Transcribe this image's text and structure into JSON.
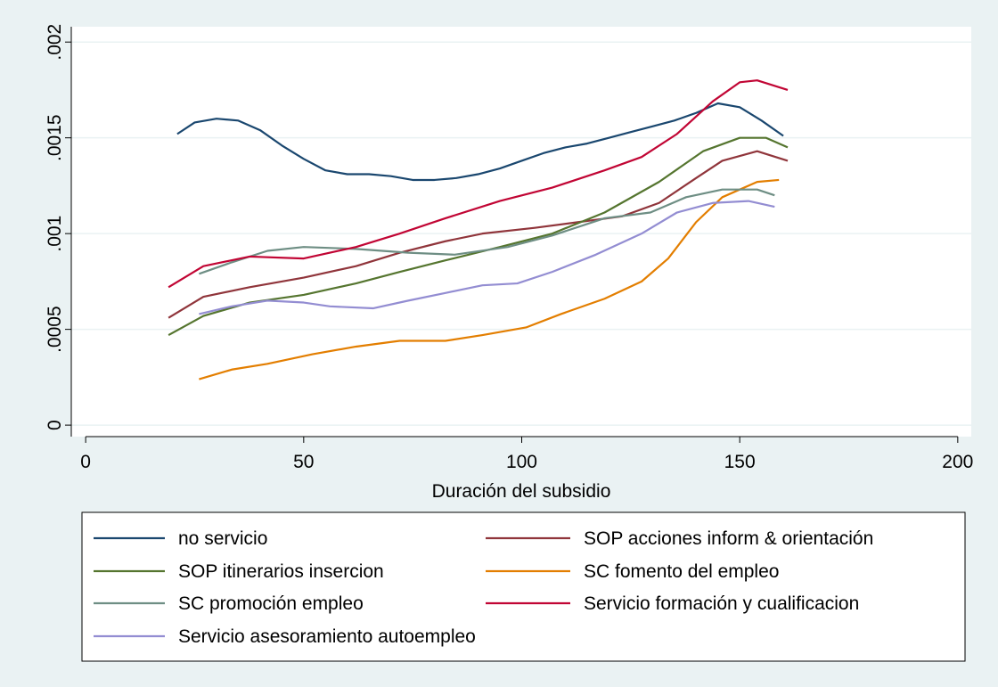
{
  "chart_data": {
    "type": "line",
    "xlabel": "Duración del subsidio",
    "xlim": [
      -3.3,
      203.1
    ],
    "xticks": [
      0,
      50,
      100,
      150,
      200
    ],
    "ylim": [
      -6e-05,
      0.00208
    ],
    "yticks": [
      0,
      {
        "value": 0.0005,
        "label": ".0005"
      },
      {
        "value": 0.001,
        "label": ".001"
      },
      {
        "value": 0.0015,
        "label": ".0015"
      },
      {
        "value": 0.002,
        "label": ".002"
      }
    ],
    "grid": true,
    "series": [
      {
        "name": "no servicio",
        "color": "#1a476f",
        "x": [
          21,
          25,
          30,
          35,
          40,
          45,
          50,
          55,
          60,
          65,
          70,
          75,
          80,
          85,
          90,
          95,
          100,
          105,
          110,
          115,
          120,
          125,
          130,
          135,
          140,
          145,
          150,
          155,
          160
        ],
        "values": [
          0.00152,
          0.00158,
          0.0016,
          0.00159,
          0.00154,
          0.00146,
          0.00139,
          0.00133,
          0.00131,
          0.00131,
          0.0013,
          0.00128,
          0.00128,
          0.00129,
          0.00131,
          0.00134,
          0.00138,
          0.00142,
          0.00145,
          0.00147,
          0.0015,
          0.00153,
          0.00156,
          0.00159,
          0.00163,
          0.00168,
          0.00166,
          0.00159,
          0.00151
        ]
      },
      {
        "name": "SOP acciones inform & orientación",
        "color": "#90353b",
        "x": [
          19,
          27,
          37.6,
          50,
          62,
          72,
          82.5,
          91,
          103,
          113,
          123,
          131.5,
          140,
          146,
          154,
          161
        ],
        "values": [
          0.00056,
          0.00067,
          0.00072,
          0.00077,
          0.00083,
          0.0009,
          0.00096,
          0.001,
          0.00103,
          0.00106,
          0.00109,
          0.00116,
          0.00129,
          0.00138,
          0.00143,
          0.00138
        ]
      },
      {
        "name": "SOP itinerarios insercion",
        "color": "#55752f",
        "x": [
          19,
          27,
          37.6,
          50,
          62,
          72,
          82.5,
          95,
          107,
          119,
          131.5,
          141.6,
          150,
          156,
          161
        ],
        "values": [
          0.00047,
          0.00057,
          0.00064,
          0.00068,
          0.00074,
          0.0008,
          0.00086,
          0.00093,
          0.001,
          0.00111,
          0.00127,
          0.00143,
          0.0015,
          0.0015,
          0.00145
        ]
      },
      {
        "name": "SC fomento del empleo",
        "color": "#e37e00",
        "x": [
          26,
          33.5,
          41.7,
          52,
          62,
          72,
          82.5,
          91,
          101,
          109,
          119,
          127.5,
          133.6,
          140,
          146,
          154,
          159
        ],
        "values": [
          0.00024,
          0.00029,
          0.00032,
          0.00037,
          0.00041,
          0.00044,
          0.00044,
          0.00047,
          0.00051,
          0.00058,
          0.00066,
          0.00075,
          0.00087,
          0.00106,
          0.00119,
          0.00127,
          0.00128
        ]
      },
      {
        "name": "SC promoción empleo",
        "color": "#6e8e84",
        "x": [
          26,
          33.5,
          41.7,
          50,
          62,
          74,
          84.6,
          96.8,
          107,
          119,
          129.5,
          137.7,
          146,
          154,
          158
        ],
        "values": [
          0.00079,
          0.00085,
          0.00091,
          0.00093,
          0.00092,
          0.0009,
          0.00089,
          0.00093,
          0.00099,
          0.00108,
          0.00111,
          0.00119,
          0.00123,
          0.00123,
          0.0012
        ]
      },
      {
        "name": "Servicio formación y cualificacion",
        "color": "#c10534",
        "x": [
          19,
          27,
          37.6,
          50,
          62,
          72,
          82.5,
          95,
          107,
          119,
          127.5,
          135.6,
          143.8,
          150,
          154,
          161
        ],
        "values": [
          0.00072,
          0.00083,
          0.00088,
          0.00087,
          0.00093,
          0.001,
          0.00108,
          0.00117,
          0.00124,
          0.00133,
          0.0014,
          0.00152,
          0.00169,
          0.00179,
          0.0018,
          0.00175
        ]
      },
      {
        "name": "Servicio asesoramiento autoempleo",
        "color": "#938dd2",
        "x": [
          26,
          33.5,
          41.7,
          50,
          56,
          66,
          74,
          82.5,
          91,
          99,
          107,
          117,
          127.5,
          135.6,
          143.8,
          152,
          158
        ],
        "values": [
          0.00058,
          0.00062,
          0.00065,
          0.00064,
          0.00062,
          0.00061,
          0.00065,
          0.00069,
          0.00073,
          0.00074,
          0.0008,
          0.00089,
          0.001,
          0.00111,
          0.00116,
          0.00117,
          0.00114
        ]
      }
    ]
  }
}
